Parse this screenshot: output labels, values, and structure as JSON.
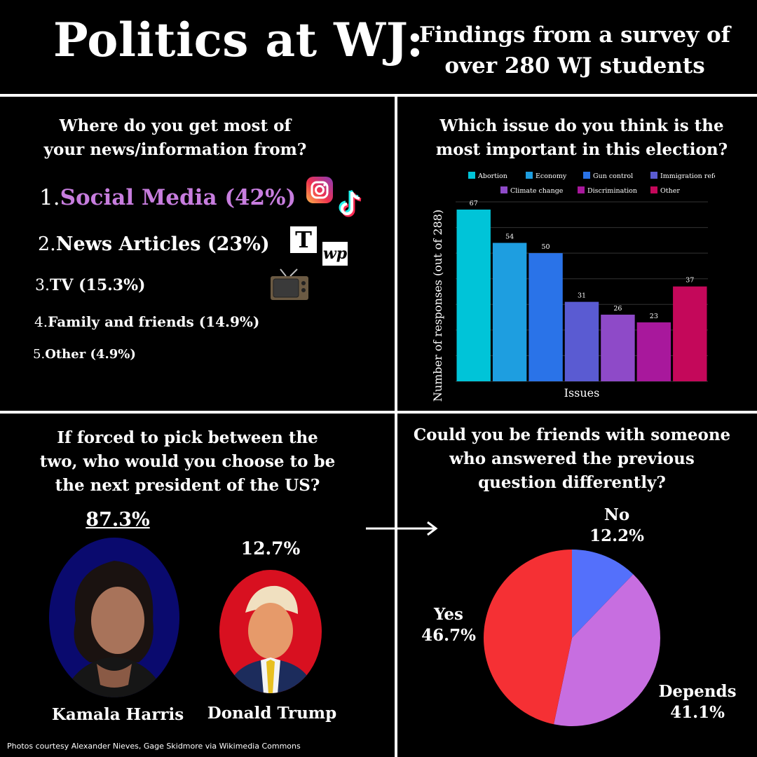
{
  "header": {
    "title": "Politics at WJ:",
    "subtitle_line1": "Findings from a survey of",
    "subtitle_line2": "over 280 WJ students"
  },
  "news": {
    "question_line1": "Where do you get most of",
    "question_line2": "your news/information from?",
    "items": [
      {
        "num": "1.",
        "label": "Social Media  (42%)"
      },
      {
        "num": "2.",
        "label": "News Articles (23%)"
      },
      {
        "num": "3.",
        "label": "TV (15.3%)"
      },
      {
        "num": "4.",
        "label": "Family and friends (14.9%)"
      },
      {
        "num": "5.",
        "label": "Other (4.9%)"
      }
    ],
    "icons": [
      "instagram-icon",
      "tiktok-icon",
      "nyt-icon",
      "washington-post-icon",
      "tv-icon"
    ],
    "icon_glyphs": {
      "nyt": "T",
      "wapo": "wp"
    }
  },
  "issues": {
    "question_line1": "Which issue do you think is the",
    "question_line2": "most important in this election?"
  },
  "chart_data": {
    "type": "bar",
    "categories": [
      "Abortion",
      "Economy",
      "Gun control",
      "Immigration reform",
      "Climate change",
      "Discrimination",
      "Other"
    ],
    "values": [
      67,
      54,
      50,
      31,
      26,
      23,
      37
    ],
    "colors": [
      "#00c4d8",
      "#1e9ee0",
      "#2a73e8",
      "#5a5bd2",
      "#8e4ac8",
      "#a8189c",
      "#c4085a"
    ],
    "xlabel": "Issues",
    "ylabel": "Number of responses (out of 288)",
    "ylim": [
      0,
      70
    ],
    "legend": "top",
    "grid": true
  },
  "president": {
    "question_line1": "If forced to pick between the",
    "question_line2": "two, who would you choose to be",
    "question_line3": "the next president of the US?",
    "harris_pct": "87.3%",
    "trump_pct": "12.7%",
    "harris_name": "Kamala Harris",
    "trump_name": "Donald Trump",
    "harris_bg": "#0a0a6e",
    "trump_bg": "#d81020",
    "credit": "Photos courtesy Alexander Nieves, Gage Skidmore via Wikimedia Commons"
  },
  "friends": {
    "question_line1": "Could you be friends with someone",
    "question_line2": "who answered the previous",
    "question_line3": "question differently?",
    "pie": [
      {
        "label": "No",
        "pct_label": "12.2%",
        "value": 12.2,
        "color": "#5470fb"
      },
      {
        "label": "Depends",
        "pct_label": "41.1%",
        "value": 41.1,
        "color": "#c76ee0"
      },
      {
        "label": "Yes",
        "pct_label": "46.7%",
        "value": 46.7,
        "color": "#f53034"
      }
    ]
  }
}
